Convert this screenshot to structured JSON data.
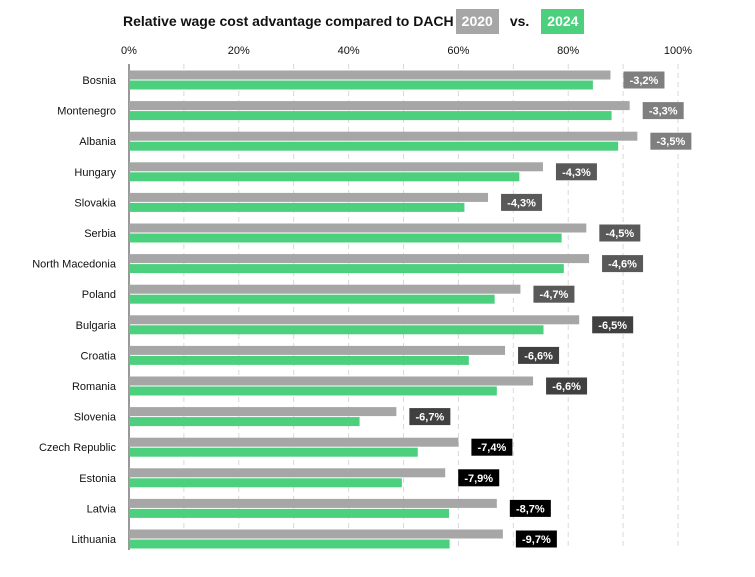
{
  "header": {
    "title": "Relative wage cost advantage compared to DACH",
    "badge_a": "2020",
    "vs": "vs.",
    "badge_b": "2024"
  },
  "colors": {
    "series_2020": "#a6a6a6",
    "series_2024": "#4cd07d",
    "grid": "#d9d9d9"
  },
  "chart_data": {
    "type": "bar",
    "orientation": "horizontal",
    "title": "Relative wage cost advantage compared to DACH",
    "x_ticks": [
      "0%",
      "20%",
      "40%",
      "60%",
      "80%",
      "100%"
    ],
    "xlim": [
      0,
      100
    ],
    "grid": true,
    "legend": "title",
    "categories": [
      "Bosnia",
      "Montenegro",
      "Albania",
      "Hungary",
      "Slovakia",
      "Serbia",
      "North Macedonia",
      "Poland",
      "Bulgaria",
      "Croatia",
      "Romania",
      "Slovenia",
      "Czech Republic",
      "Estonia",
      "Latvia",
      "Lithuania"
    ],
    "series": [
      {
        "name": "2020",
        "color": "#a6a6a6",
        "values": [
          87.7,
          91.2,
          92.6,
          75.4,
          65.4,
          83.3,
          83.8,
          71.3,
          82.0,
          68.5,
          73.6,
          48.7,
          60.0,
          57.6,
          67.0,
          68.1
        ]
      },
      {
        "name": "2024",
        "color": "#4cd07d",
        "values": [
          84.5,
          87.9,
          89.1,
          71.1,
          61.1,
          78.8,
          79.2,
          66.6,
          75.5,
          61.9,
          67.0,
          42.0,
          52.6,
          49.7,
          58.3,
          58.4
        ]
      }
    ],
    "diff_labels": [
      "-3,2%",
      "-3,3%",
      "-3,5%",
      "-4,3%",
      "-4,3%",
      "-4,5%",
      "-4,6%",
      "-4,7%",
      "-6,5%",
      "-6,6%",
      "-6,6%",
      "-6,7%",
      "-7,4%",
      "-7,9%",
      "-8,7%",
      "-9,7%"
    ],
    "diff_colors": [
      "#7f7f7f",
      "#7f7f7f",
      "#7f7f7f",
      "#595959",
      "#595959",
      "#595959",
      "#595959",
      "#595959",
      "#404040",
      "#404040",
      "#404040",
      "#404040",
      "#000000",
      "#000000",
      "#000000",
      "#000000"
    ]
  }
}
